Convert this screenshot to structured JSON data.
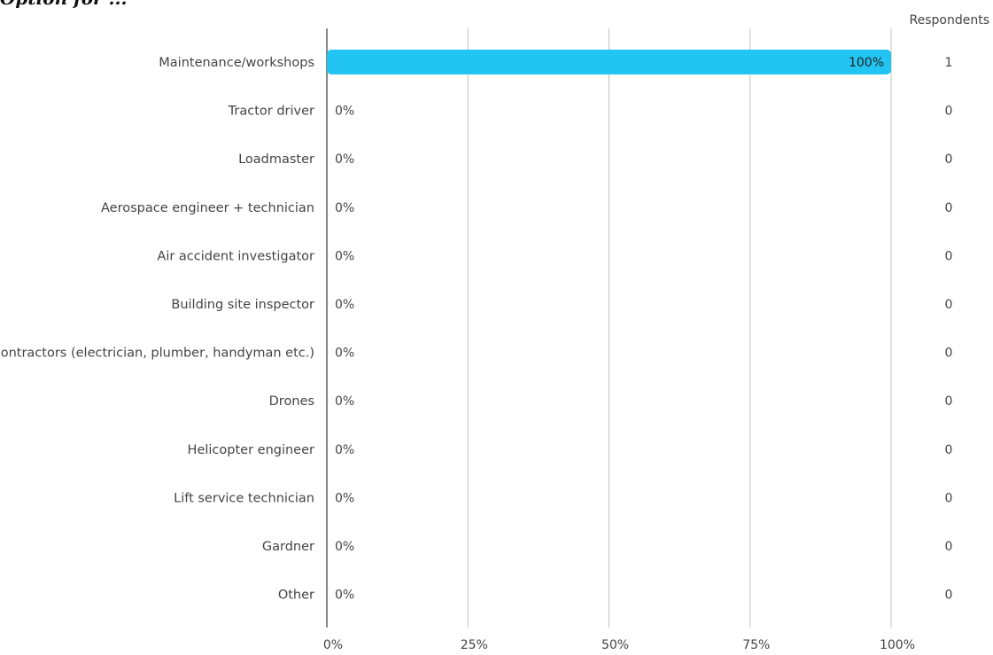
{
  "page": {
    "title_fragment": "Option for ..."
  },
  "chart_data": {
    "type": "bar",
    "orientation": "horizontal",
    "title": "",
    "xlabel": "",
    "ylabel": "",
    "respondents_header": "Respondents",
    "categories": [
      "Maintenance/workshops",
      "Tractor driver",
      "Loadmaster",
      "Aerospace engineer + technician",
      "Air accident investigator",
      "Building site inspector",
      "Contractors (electrician, plumber, handyman etc.)",
      "Drones",
      "Helicopter engineer",
      "Lift service technician",
      "Gardner",
      "Other"
    ],
    "values": [
      100,
      0,
      0,
      0,
      0,
      0,
      0,
      0,
      0,
      0,
      0,
      0
    ],
    "value_labels": [
      "100%",
      "0%",
      "0%",
      "0%",
      "0%",
      "0%",
      "0%",
      "0%",
      "0%",
      "0%",
      "0%",
      "0%"
    ],
    "respondents": [
      1,
      0,
      0,
      0,
      0,
      0,
      0,
      0,
      0,
      0,
      0,
      0
    ],
    "xlim": [
      0,
      100
    ],
    "x_ticks": [
      0,
      25,
      50,
      75,
      100
    ],
    "x_tick_labels": [
      "0%",
      "25%",
      "50%",
      "75%",
      "100%"
    ],
    "grid": true,
    "bar_color": "#22c4f2",
    "grid_color": "#bfbfbf",
    "axis_color": "#555555"
  }
}
